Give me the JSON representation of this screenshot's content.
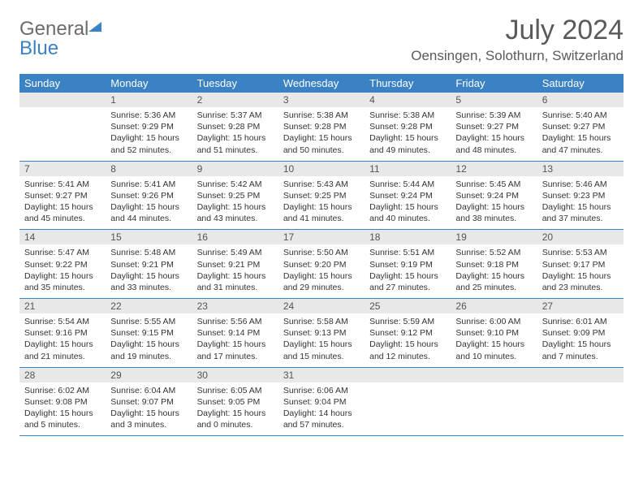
{
  "logo": {
    "general": "General",
    "blue": "Blue"
  },
  "title": "July 2024",
  "location": "Oensingen, Solothurn, Switzerland",
  "colors": {
    "header_bg": "#3b82c4",
    "header_text": "#ffffff",
    "daynum_bg": "#e8e8e8",
    "daynum_text": "#555555",
    "body_text": "#333333",
    "border": "#3b82c4",
    "logo_gray": "#6b6b6b",
    "logo_blue": "#3b82c4"
  },
  "day_labels": [
    "Sunday",
    "Monday",
    "Tuesday",
    "Wednesday",
    "Thursday",
    "Friday",
    "Saturday"
  ],
  "weeks": [
    [
      {
        "n": "",
        "sr": "",
        "ss": "",
        "dl": ""
      },
      {
        "n": "1",
        "sr": "Sunrise: 5:36 AM",
        "ss": "Sunset: 9:29 PM",
        "dl": "Daylight: 15 hours and 52 minutes."
      },
      {
        "n": "2",
        "sr": "Sunrise: 5:37 AM",
        "ss": "Sunset: 9:28 PM",
        "dl": "Daylight: 15 hours and 51 minutes."
      },
      {
        "n": "3",
        "sr": "Sunrise: 5:38 AM",
        "ss": "Sunset: 9:28 PM",
        "dl": "Daylight: 15 hours and 50 minutes."
      },
      {
        "n": "4",
        "sr": "Sunrise: 5:38 AM",
        "ss": "Sunset: 9:28 PM",
        "dl": "Daylight: 15 hours and 49 minutes."
      },
      {
        "n": "5",
        "sr": "Sunrise: 5:39 AM",
        "ss": "Sunset: 9:27 PM",
        "dl": "Daylight: 15 hours and 48 minutes."
      },
      {
        "n": "6",
        "sr": "Sunrise: 5:40 AM",
        "ss": "Sunset: 9:27 PM",
        "dl": "Daylight: 15 hours and 47 minutes."
      }
    ],
    [
      {
        "n": "7",
        "sr": "Sunrise: 5:41 AM",
        "ss": "Sunset: 9:27 PM",
        "dl": "Daylight: 15 hours and 45 minutes."
      },
      {
        "n": "8",
        "sr": "Sunrise: 5:41 AM",
        "ss": "Sunset: 9:26 PM",
        "dl": "Daylight: 15 hours and 44 minutes."
      },
      {
        "n": "9",
        "sr": "Sunrise: 5:42 AM",
        "ss": "Sunset: 9:25 PM",
        "dl": "Daylight: 15 hours and 43 minutes."
      },
      {
        "n": "10",
        "sr": "Sunrise: 5:43 AM",
        "ss": "Sunset: 9:25 PM",
        "dl": "Daylight: 15 hours and 41 minutes."
      },
      {
        "n": "11",
        "sr": "Sunrise: 5:44 AM",
        "ss": "Sunset: 9:24 PM",
        "dl": "Daylight: 15 hours and 40 minutes."
      },
      {
        "n": "12",
        "sr": "Sunrise: 5:45 AM",
        "ss": "Sunset: 9:24 PM",
        "dl": "Daylight: 15 hours and 38 minutes."
      },
      {
        "n": "13",
        "sr": "Sunrise: 5:46 AM",
        "ss": "Sunset: 9:23 PM",
        "dl": "Daylight: 15 hours and 37 minutes."
      }
    ],
    [
      {
        "n": "14",
        "sr": "Sunrise: 5:47 AM",
        "ss": "Sunset: 9:22 PM",
        "dl": "Daylight: 15 hours and 35 minutes."
      },
      {
        "n": "15",
        "sr": "Sunrise: 5:48 AM",
        "ss": "Sunset: 9:21 PM",
        "dl": "Daylight: 15 hours and 33 minutes."
      },
      {
        "n": "16",
        "sr": "Sunrise: 5:49 AM",
        "ss": "Sunset: 9:21 PM",
        "dl": "Daylight: 15 hours and 31 minutes."
      },
      {
        "n": "17",
        "sr": "Sunrise: 5:50 AM",
        "ss": "Sunset: 9:20 PM",
        "dl": "Daylight: 15 hours and 29 minutes."
      },
      {
        "n": "18",
        "sr": "Sunrise: 5:51 AM",
        "ss": "Sunset: 9:19 PM",
        "dl": "Daylight: 15 hours and 27 minutes."
      },
      {
        "n": "19",
        "sr": "Sunrise: 5:52 AM",
        "ss": "Sunset: 9:18 PM",
        "dl": "Daylight: 15 hours and 25 minutes."
      },
      {
        "n": "20",
        "sr": "Sunrise: 5:53 AM",
        "ss": "Sunset: 9:17 PM",
        "dl": "Daylight: 15 hours and 23 minutes."
      }
    ],
    [
      {
        "n": "21",
        "sr": "Sunrise: 5:54 AM",
        "ss": "Sunset: 9:16 PM",
        "dl": "Daylight: 15 hours and 21 minutes."
      },
      {
        "n": "22",
        "sr": "Sunrise: 5:55 AM",
        "ss": "Sunset: 9:15 PM",
        "dl": "Daylight: 15 hours and 19 minutes."
      },
      {
        "n": "23",
        "sr": "Sunrise: 5:56 AM",
        "ss": "Sunset: 9:14 PM",
        "dl": "Daylight: 15 hours and 17 minutes."
      },
      {
        "n": "24",
        "sr": "Sunrise: 5:58 AM",
        "ss": "Sunset: 9:13 PM",
        "dl": "Daylight: 15 hours and 15 minutes."
      },
      {
        "n": "25",
        "sr": "Sunrise: 5:59 AM",
        "ss": "Sunset: 9:12 PM",
        "dl": "Daylight: 15 hours and 12 minutes."
      },
      {
        "n": "26",
        "sr": "Sunrise: 6:00 AM",
        "ss": "Sunset: 9:10 PM",
        "dl": "Daylight: 15 hours and 10 minutes."
      },
      {
        "n": "27",
        "sr": "Sunrise: 6:01 AM",
        "ss": "Sunset: 9:09 PM",
        "dl": "Daylight: 15 hours and 7 minutes."
      }
    ],
    [
      {
        "n": "28",
        "sr": "Sunrise: 6:02 AM",
        "ss": "Sunset: 9:08 PM",
        "dl": "Daylight: 15 hours and 5 minutes."
      },
      {
        "n": "29",
        "sr": "Sunrise: 6:04 AM",
        "ss": "Sunset: 9:07 PM",
        "dl": "Daylight: 15 hours and 3 minutes."
      },
      {
        "n": "30",
        "sr": "Sunrise: 6:05 AM",
        "ss": "Sunset: 9:05 PM",
        "dl": "Daylight: 15 hours and 0 minutes."
      },
      {
        "n": "31",
        "sr": "Sunrise: 6:06 AM",
        "ss": "Sunset: 9:04 PM",
        "dl": "Daylight: 14 hours and 57 minutes."
      },
      {
        "n": "",
        "sr": "",
        "ss": "",
        "dl": ""
      },
      {
        "n": "",
        "sr": "",
        "ss": "",
        "dl": ""
      },
      {
        "n": "",
        "sr": "",
        "ss": "",
        "dl": ""
      }
    ]
  ]
}
